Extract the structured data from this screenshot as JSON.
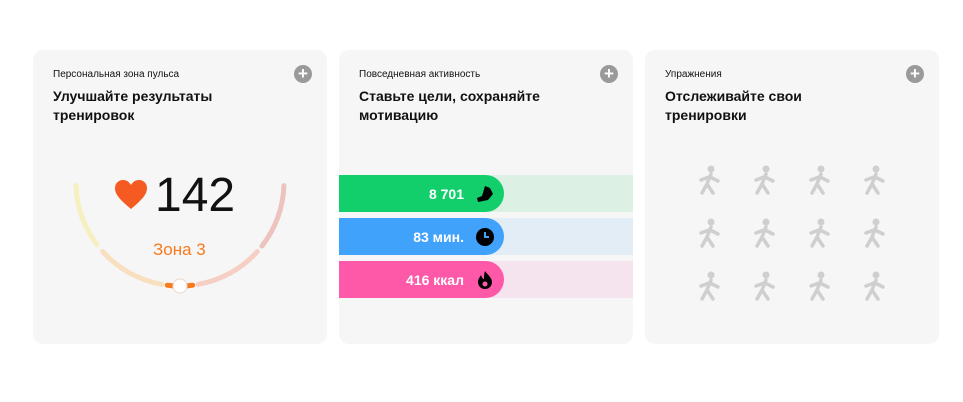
{
  "heart_zone": {
    "subtitle": "Персональная зона пульса",
    "title": "Улучшайте результаты тренировок",
    "bpm": "142",
    "zone": "Зона 3",
    "zone_colors": [
      "#f6efc0",
      "#f7dfc0",
      "#f97a1e",
      "#f6cfc4",
      "#ecc3bd"
    ],
    "accent": "#f55a22"
  },
  "activity": {
    "subtitle": "Повседневная активность",
    "title": "Ставьте цели, сохраняйте мотивацию",
    "bars": [
      {
        "value": "8 701",
        "icon": "shoe-icon",
        "color": "#12cf6c",
        "track": "#dcf1e4"
      },
      {
        "value": "83 мин.",
        "icon": "clock-icon",
        "color": "#41a2fc",
        "track": "#e3edf6"
      },
      {
        "value": "416 ккал",
        "icon": "flame-icon",
        "color": "#fe59a8",
        "track": "#f5e3ee"
      }
    ]
  },
  "exercise": {
    "subtitle": "Упражнения",
    "title": "Отслеживайте свои тренировки",
    "icons": [
      "kayak-icon",
      "cycling-icon",
      "horse-riding-icon",
      "hurdles-icon",
      "rowing-icon",
      "golf-icon",
      "swimming-icon",
      "weightlifting-icon",
      "soccer-icon",
      "yoga-icon",
      "hiking-icon",
      "jump-rope-icon"
    ]
  }
}
